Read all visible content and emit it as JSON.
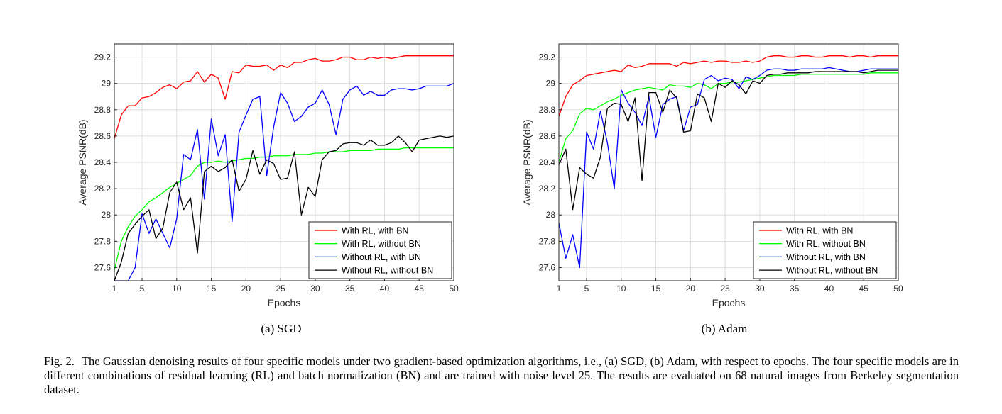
{
  "chart_data": [
    {
      "type": "line",
      "id": "sgd",
      "xlabel": "Epochs",
      "ylabel": "Average PSNR(dB)",
      "xlim": [
        1,
        50
      ],
      "ylim": [
        27.5,
        29.3
      ],
      "xticks": [
        1,
        5,
        10,
        15,
        20,
        25,
        30,
        35,
        40,
        45,
        50
      ],
      "yticks": [
        27.6,
        27.8,
        28,
        28.2,
        28.4,
        28.6,
        28.8,
        29,
        29.2
      ],
      "ytick_labels": [
        "27.6",
        "27.8",
        "28",
        "28.2",
        "28.4",
        "28.6",
        "28.8",
        "29",
        "29.2"
      ],
      "grid": true,
      "legend_position": "bottom-right",
      "series": [
        {
          "name": "With RL, with BN",
          "color": "#ff0000",
          "values": [
            28.58,
            28.76,
            28.83,
            28.83,
            28.89,
            28.9,
            28.93,
            28.97,
            28.99,
            28.96,
            29.01,
            29.02,
            29.09,
            29.01,
            29.07,
            29.04,
            28.88,
            29.09,
            29.08,
            29.14,
            29.13,
            29.13,
            29.14,
            29.1,
            29.14,
            29.12,
            29.16,
            29.16,
            29.18,
            29.19,
            29.17,
            29.17,
            29.18,
            29.2,
            29.2,
            29.18,
            29.18,
            29.2,
            29.19,
            29.2,
            29.19,
            29.2,
            29.21,
            29.21,
            29.21,
            29.21,
            29.21,
            29.21,
            29.21,
            29.21
          ]
        },
        {
          "name": "With RL, without BN",
          "color": "#00ff00",
          "values": [
            27.58,
            27.8,
            27.91,
            27.99,
            28.04,
            28.1,
            28.13,
            28.17,
            28.21,
            28.24,
            28.27,
            28.3,
            28.37,
            28.4,
            28.4,
            28.41,
            28.4,
            28.41,
            28.42,
            28.43,
            28.43,
            28.44,
            28.44,
            28.45,
            28.45,
            28.45,
            28.46,
            28.46,
            28.46,
            28.47,
            28.47,
            28.48,
            28.48,
            28.48,
            28.49,
            28.49,
            28.49,
            28.49,
            28.5,
            28.5,
            28.5,
            28.5,
            28.51,
            28.51,
            28.51,
            28.51,
            28.51,
            28.51,
            28.51,
            28.51
          ]
        },
        {
          "name": "Without RL, with BN",
          "color": "#0000ff",
          "values": [
            27.49,
            27.5,
            27.49,
            27.6,
            28.01,
            27.86,
            27.97,
            27.86,
            27.75,
            27.97,
            28.46,
            28.42,
            28.65,
            28.12,
            28.73,
            28.45,
            28.61,
            27.95,
            28.63,
            28.76,
            28.88,
            28.9,
            28.3,
            28.67,
            28.93,
            28.85,
            28.71,
            28.75,
            28.82,
            28.85,
            28.95,
            28.84,
            28.61,
            28.88,
            28.95,
            28.98,
            28.91,
            28.94,
            28.91,
            28.91,
            28.95,
            28.96,
            28.96,
            28.95,
            28.96,
            28.98,
            28.98,
            28.98,
            28.98,
            29.0
          ]
        },
        {
          "name": "Without RL, without BN",
          "color": "#000000",
          "values": [
            27.49,
            27.64,
            27.86,
            27.93,
            27.99,
            28.04,
            27.82,
            27.9,
            28.17,
            28.25,
            28.04,
            28.13,
            27.71,
            28.33,
            28.37,
            28.33,
            28.36,
            28.42,
            28.18,
            28.27,
            28.49,
            28.31,
            28.42,
            28.39,
            28.27,
            28.28,
            28.48,
            28.0,
            28.21,
            28.14,
            28.42,
            28.48,
            28.49,
            28.54,
            28.55,
            28.55,
            28.53,
            28.57,
            28.53,
            28.53,
            28.55,
            28.6,
            28.55,
            28.48,
            28.57,
            28.58,
            28.59,
            28.6,
            28.59,
            28.6
          ]
        }
      ]
    },
    {
      "type": "line",
      "id": "adam",
      "xlabel": "Epochs",
      "ylabel": "Average PSNR(dB)",
      "xlim": [
        1,
        50
      ],
      "ylim": [
        27.5,
        29.3
      ],
      "xticks": [
        1,
        5,
        10,
        15,
        20,
        25,
        30,
        35,
        40,
        45,
        50
      ],
      "yticks": [
        27.6,
        27.8,
        28,
        28.2,
        28.4,
        28.6,
        28.8,
        29,
        29.2
      ],
      "ytick_labels": [
        "27.6",
        "27.8",
        "28",
        "28.2",
        "28.4",
        "28.6",
        "28.8",
        "29",
        "29.2"
      ],
      "grid": true,
      "legend_position": "bottom-right",
      "series": [
        {
          "name": "With RL, with BN",
          "color": "#ff0000",
          "values": [
            28.75,
            28.9,
            28.99,
            29.02,
            29.06,
            29.07,
            29.08,
            29.09,
            29.1,
            29.09,
            29.14,
            29.12,
            29.13,
            29.15,
            29.15,
            29.15,
            29.15,
            29.13,
            29.16,
            29.15,
            29.16,
            29.17,
            29.16,
            29.17,
            29.17,
            29.16,
            29.16,
            29.17,
            29.16,
            29.17,
            29.2,
            29.21,
            29.21,
            29.2,
            29.2,
            29.21,
            29.21,
            29.2,
            29.2,
            29.21,
            29.21,
            29.21,
            29.2,
            29.21,
            29.21,
            29.2,
            29.21,
            29.21,
            29.21,
            29.21
          ]
        },
        {
          "name": "With RL, without BN",
          "color": "#00ff00",
          "values": [
            28.4,
            28.58,
            28.64,
            28.77,
            28.81,
            28.8,
            28.83,
            28.86,
            28.88,
            28.91,
            28.93,
            28.95,
            28.96,
            28.97,
            28.96,
            28.95,
            28.99,
            28.98,
            28.98,
            28.97,
            29.0,
            28.99,
            28.96,
            29.0,
            29.0,
            29.01,
            29.01,
            29.02,
            29.03,
            29.04,
            29.05,
            29.06,
            29.06,
            29.06,
            29.06,
            29.07,
            29.07,
            29.07,
            29.07,
            29.07,
            29.07,
            29.07,
            29.07,
            29.07,
            29.07,
            29.08,
            29.08,
            29.08,
            29.08,
            29.08
          ]
        },
        {
          "name": "Without RL, with BN",
          "color": "#0000ff",
          "values": [
            27.94,
            27.67,
            27.85,
            27.6,
            28.63,
            28.5,
            28.79,
            28.55,
            28.2,
            28.95,
            28.85,
            28.78,
            28.68,
            28.9,
            28.59,
            28.84,
            28.88,
            28.9,
            28.64,
            28.82,
            28.84,
            29.03,
            29.06,
            29.02,
            29.04,
            29.03,
            28.96,
            29.05,
            29.03,
            29.06,
            29.1,
            29.11,
            29.11,
            29.1,
            29.1,
            29.11,
            29.11,
            29.11,
            29.11,
            29.12,
            29.11,
            29.1,
            29.09,
            29.09,
            29.1,
            29.11,
            29.11,
            29.11,
            29.11,
            29.11
          ]
        },
        {
          "name": "Without RL, without BN",
          "color": "#000000",
          "values": [
            28.38,
            28.5,
            28.04,
            28.36,
            28.31,
            28.28,
            28.44,
            28.81,
            28.85,
            28.84,
            28.71,
            28.89,
            28.26,
            28.93,
            28.93,
            28.78,
            28.95,
            28.89,
            28.63,
            28.64,
            28.92,
            28.89,
            28.71,
            29.0,
            28.97,
            29.02,
            28.99,
            28.92,
            29.02,
            29.0,
            29.06,
            29.07,
            29.07,
            29.08,
            29.08,
            29.08,
            29.08,
            29.09,
            29.09,
            29.09,
            29.09,
            29.09,
            29.09,
            29.09,
            29.08,
            29.09,
            29.1,
            29.1,
            29.1,
            29.1
          ]
        }
      ]
    }
  ],
  "sub_captions": {
    "a": "(a) SGD",
    "b": "(b) Adam"
  },
  "figure_caption": {
    "label": "Fig. 2.",
    "text": "The Gaussian denoising results of four specific models under two gradient-based optimization algorithms, i.e., (a) SGD, (b) Adam, with respect to epochs. The four specific models are in different combinations of residual learning (RL) and batch normalization (BN) and are trained with noise level 25. The results are evaluated on 68 natural images from Berkeley segmentation dataset."
  }
}
